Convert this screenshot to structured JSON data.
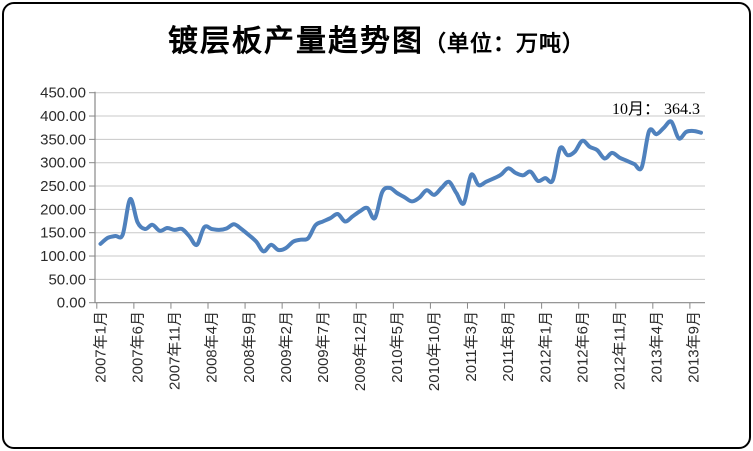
{
  "title": {
    "main": "镀层板产量趋势图",
    "unit": "（单位：万吨）"
  },
  "annotation": {
    "text": "10月： 364.3"
  },
  "chart_data": {
    "type": "line",
    "title": "镀层板产量趋势图（单位：万吨）",
    "start_month": "2007年1月",
    "end_month": "2013年10月",
    "x_tick_labels": [
      "2007年1月",
      "2007年6月",
      "2007年11月",
      "2008年4月",
      "2008年9月",
      "2009年2月",
      "2009年7月",
      "2009年12月",
      "2010年5月",
      "2010年10月",
      "2011年3月",
      "2011年8月",
      "2012年1月",
      "2012年6月",
      "2012年11月",
      "2013年4月",
      "2013年9月"
    ],
    "x_tick_every": 5,
    "y_tick_labels": [
      "0.00",
      "50.00",
      "100.00",
      "150.00",
      "200.00",
      "250.00",
      "300.00",
      "350.00",
      "400.00",
      "450.00"
    ],
    "ylim": [
      0,
      450
    ],
    "ytick_step": 50,
    "grid": "horizontal",
    "legend": "none",
    "last_point_label": "10月： 364.3",
    "values": [
      126,
      139,
      143,
      146,
      222,
      172,
      158,
      167,
      154,
      160,
      156,
      158,
      142,
      124,
      162,
      158,
      156,
      159,
      168,
      158,
      145,
      131,
      110,
      124,
      113,
      117,
      131,
      135,
      138,
      166,
      174,
      181,
      190,
      174,
      185,
      196,
      203,
      181,
      237,
      246,
      235,
      226,
      217,
      225,
      241,
      231,
      246,
      259,
      235,
      213,
      274,
      252,
      259,
      266,
      274,
      288,
      278,
      273,
      281,
      261,
      267,
      262,
      331,
      316,
      324,
      347,
      334,
      327,
      309,
      321,
      311,
      304,
      297,
      290,
      368,
      361,
      375,
      388,
      352,
      366,
      368,
      364.3
    ],
    "colors": {
      "line": "#4F81BD",
      "grid": "#C8C8C8",
      "axis": "#888888",
      "tick_text": "#2b2b2b",
      "annotation_text": "#000000"
    }
  }
}
